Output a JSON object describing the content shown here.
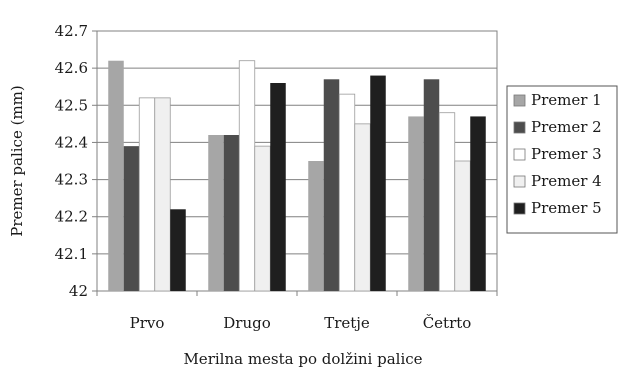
{
  "chart_data": {
    "type": "bar",
    "title": "",
    "xlabel": "Merilna mesta po dolžini palice",
    "ylabel": "Premer palice (mm)",
    "ylim": [
      42,
      42.7
    ],
    "yticks": [
      "42",
      "42.1",
      "42.2",
      "42.3",
      "42.4",
      "42.5",
      "42.6",
      "42.7"
    ],
    "grid": true,
    "legend_position": "right",
    "categories": [
      "Prvo",
      "Drugo",
      "Tretje",
      "Četrto"
    ],
    "series": [
      {
        "name": "Premer 1",
        "color": "#a6a6a6",
        "values": [
          42.62,
          42.42,
          42.35,
          42.47
        ]
      },
      {
        "name": "Premer 2",
        "color": "#4d4d4d",
        "values": [
          42.39,
          42.42,
          42.57,
          42.57
        ]
      },
      {
        "name": "Premer 3",
        "color": "#ffffff",
        "values": [
          42.52,
          42.62,
          42.53,
          42.48
        ]
      },
      {
        "name": "Premer 4",
        "color": "#f0f0f0",
        "values": [
          42.52,
          42.39,
          42.45,
          42.35
        ]
      },
      {
        "name": "Premer 5",
        "color": "#1f1f1f",
        "values": [
          42.22,
          42.56,
          42.58,
          42.47
        ]
      }
    ]
  }
}
